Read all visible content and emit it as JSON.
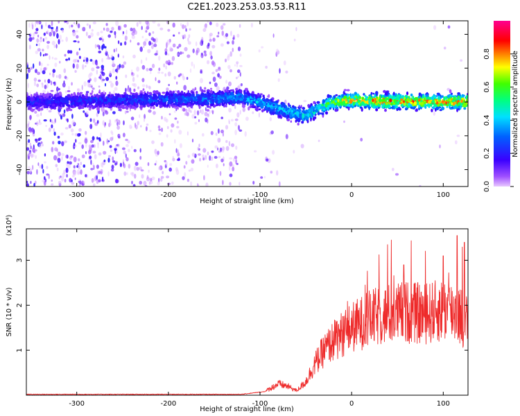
{
  "page": {
    "title": "C2E1.2023.253.03.53.R11"
  },
  "colors": {
    "snr_line": "#ee2a2a",
    "frame": "#000000",
    "background": "#ffffff"
  },
  "chart_data": [
    {
      "type": "heatmap",
      "xlabel": "Height of straight line (km)",
      "ylabel": "Frequency (Hz)",
      "xlim": [
        -355,
        127
      ],
      "ylim": [
        -50,
        48
      ],
      "x_ticks": [
        -300,
        -200,
        -100,
        0,
        100
      ],
      "y_ticks": [
        -40,
        -20,
        0,
        20,
        40
      ],
      "colorbar": {
        "label": "Normalized spectral amplitude",
        "range": [
          0,
          1
        ],
        "ticks": [
          "0.0",
          "0.2",
          "0.4",
          "0.6",
          "0.8"
        ],
        "ticks_values": [
          0,
          0.2,
          0.4,
          0.6,
          0.8
        ],
        "colormap": "rainbow (magenta-blue-cyan-green-yellow-red-magenta)"
      },
      "ridge_frequency_hz": [
        {
          "x": -350,
          "y": 0
        },
        {
          "x": -250,
          "y": 1
        },
        {
          "x": -150,
          "y": 2
        },
        {
          "x": -120,
          "y": 3
        },
        {
          "x": -100,
          "y": 0
        },
        {
          "x": -80,
          "y": -4
        },
        {
          "x": -60,
          "y": -7
        },
        {
          "x": -50,
          "y": -8
        },
        {
          "x": -40,
          "y": -5
        },
        {
          "x": -25,
          "y": -1
        },
        {
          "x": -5,
          "y": 1
        },
        {
          "x": 20,
          "y": 0.5
        },
        {
          "x": 127,
          "y": 0
        }
      ],
      "ridge_amplitude": [
        {
          "x": -350,
          "a": 0.25
        },
        {
          "x": -260,
          "a": 0.28
        },
        {
          "x": -200,
          "a": 0.33
        },
        {
          "x": -130,
          "a": 0.4
        },
        {
          "x": -100,
          "a": 0.45
        },
        {
          "x": -70,
          "a": 0.48
        },
        {
          "x": -40,
          "a": 0.55
        },
        {
          "x": -20,
          "a": 0.7
        },
        {
          "x": 0,
          "a": 0.85
        },
        {
          "x": 40,
          "a": 0.9
        },
        {
          "x": 127,
          "a": 0.88
        }
      ],
      "noise_scatter": "broadband low-amplitude noise for heights below -120 km"
    },
    {
      "type": "line",
      "xlabel": "Height of straight line (km)",
      "ylabel": "SNR (10 * v/v)",
      "scale_note": "(x10⁴)",
      "xlim": [
        -355,
        127
      ],
      "ylim": [
        0,
        3.7
      ],
      "x_ticks": [
        -300,
        -200,
        -100,
        0,
        100
      ],
      "y_ticks": [
        1,
        2,
        3
      ],
      "envelope": [
        {
          "x": -355,
          "y": 0.02
        },
        {
          "x": -120,
          "y": 0.02
        },
        {
          "x": -95,
          "y": 0.08
        },
        {
          "x": -80,
          "y": 0.25
        },
        {
          "x": -70,
          "y": 0.2
        },
        {
          "x": -60,
          "y": 0.1
        },
        {
          "x": -50,
          "y": 0.3
        },
        {
          "x": -40,
          "y": 0.7
        },
        {
          "x": -30,
          "y": 1.0
        },
        {
          "x": -15,
          "y": 1.3
        },
        {
          "x": 0,
          "y": 1.5
        },
        {
          "x": 20,
          "y": 1.7
        },
        {
          "x": 40,
          "y": 1.8
        },
        {
          "x": 60,
          "y": 1.85
        },
        {
          "x": 80,
          "y": 1.8
        },
        {
          "x": 100,
          "y": 1.9
        },
        {
          "x": 115,
          "y": 1.85
        },
        {
          "x": 127,
          "y": 1.6
        }
      ],
      "peaks": [
        {
          "x": 57,
          "y": 2.9
        },
        {
          "x": 100,
          "y": 3.1
        },
        {
          "x": 115,
          "y": 3.55
        },
        {
          "x": 123,
          "y": 3.4
        }
      ]
    }
  ]
}
